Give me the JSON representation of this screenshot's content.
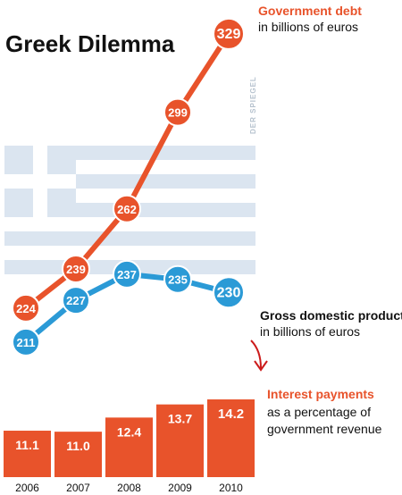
{
  "title": "Greek Dilemma",
  "credit": "DER SPIEGEL",
  "colors": {
    "debt": "#e8532b",
    "gdp": "#2b9ad6",
    "flag": "#dbe5f0",
    "bar": "#e8532b",
    "arrow": "#cc1b1b"
  },
  "chart_data": [
    {
      "type": "line",
      "x": [
        "2006",
        "2007",
        "2008",
        "2009",
        "2010"
      ],
      "series": [
        {
          "name": "Government debt",
          "unit": "in billions of euros",
          "values": [
            224,
            239,
            262,
            299,
            329
          ]
        },
        {
          "name": "Gross domestic product",
          "unit": "in billions of euros",
          "values": [
            211,
            227,
            237,
            235,
            230
          ]
        }
      ],
      "ylim": [
        200,
        330
      ],
      "grid": false
    },
    {
      "type": "bar",
      "title": "Interest payments",
      "subtitle": "as a percentage of government revenue",
      "subtitle_lines": [
        "as a percentage of",
        "government revenue"
      ],
      "categories": [
        "2006",
        "2007",
        "2008",
        "2009",
        "2010"
      ],
      "values": [
        11.1,
        11.0,
        12.4,
        13.7,
        14.2
      ]
    }
  ]
}
